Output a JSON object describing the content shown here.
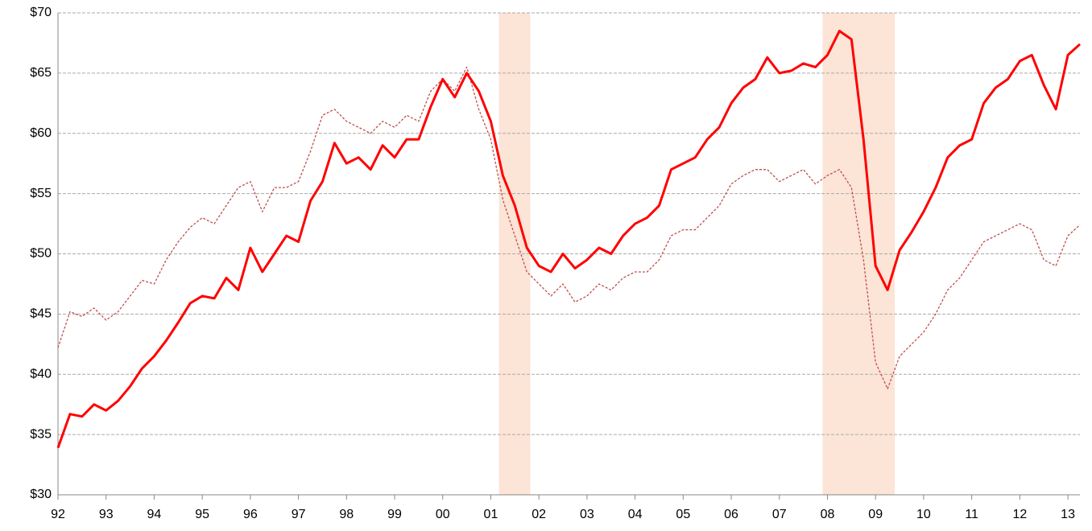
{
  "chart_data": {
    "type": "line",
    "x": [
      1992,
      1992.25,
      1992.5,
      1992.75,
      1993,
      1993.25,
      1993.5,
      1993.75,
      1994,
      1994.25,
      1994.5,
      1994.75,
      1995,
      1995.25,
      1995.5,
      1995.75,
      1996,
      1996.25,
      1996.5,
      1996.75,
      1997,
      1997.25,
      1997.5,
      1997.75,
      1998,
      1998.25,
      1998.5,
      1998.75,
      1999,
      1999.25,
      1999.5,
      1999.75,
      2000,
      2000.25,
      2000.5,
      2000.75,
      2001,
      2001.25,
      2001.5,
      2001.75,
      2002,
      2002.25,
      2002.5,
      2002.75,
      2003,
      2003.25,
      2003.5,
      2003.75,
      2004,
      2004.25,
      2004.5,
      2004.75,
      2005,
      2005.25,
      2005.5,
      2005.75,
      2006,
      2006.25,
      2006.5,
      2006.75,
      2007,
      2007.25,
      2007.5,
      2007.75,
      2008,
      2008.25,
      2008.5,
      2008.75,
      2009,
      2009.25,
      2009.5,
      2009.75,
      2010,
      2010.25,
      2010.5,
      2010.75,
      2011,
      2011.25,
      2011.5,
      2011.75,
      2012,
      2012.25,
      2012.5,
      2012.75,
      2013,
      2013.25
    ],
    "series": [
      {
        "color": "#ff0000",
        "style": "solid",
        "values": [
          33.9,
          36.7,
          36.5,
          37.5,
          37.0,
          37.8,
          39.0,
          40.5,
          41.5,
          42.8,
          44.3,
          45.9,
          46.5,
          46.3,
          48.0,
          47.0,
          50.5,
          48.5,
          50.0,
          51.5,
          51.0,
          54.4,
          56.0,
          59.2,
          57.5,
          58.0,
          57.0,
          59.0,
          58.0,
          59.5,
          59.5,
          62.2,
          64.5,
          63.0,
          65.0,
          63.5,
          61.0,
          56.5,
          54.0,
          50.5,
          49.0,
          48.5,
          50.0,
          48.8,
          49.5,
          50.5,
          50.0,
          51.5,
          52.5,
          53.0,
          54.0,
          57.0,
          57.5,
          58.0,
          59.5,
          60.5,
          62.5,
          63.8,
          64.5,
          66.3,
          65.0,
          65.2,
          65.8,
          65.5,
          66.5,
          68.5,
          67.8,
          59.5,
          49.0,
          47.0,
          50.3,
          51.8,
          53.5,
          55.5,
          58.0,
          59.0,
          59.5,
          62.5,
          63.8,
          64.5,
          66.0,
          66.5,
          64.0,
          62.0,
          66.5,
          67.4
        ]
      },
      {
        "color": "#c0504d",
        "style": "dashed",
        "values": [
          42.2,
          45.2,
          44.8,
          45.5,
          44.5,
          45.2,
          46.5,
          47.8,
          47.5,
          49.5,
          51.0,
          52.2,
          53.0,
          52.5,
          54.0,
          55.5,
          56.0,
          53.5,
          55.5,
          55.5,
          56.0,
          58.5,
          61.5,
          62.0,
          61.0,
          60.5,
          60.0,
          61.0,
          60.5,
          61.5,
          61.0,
          63.5,
          64.5,
          63.5,
          65.5,
          62.0,
          59.5,
          54.5,
          51.5,
          48.5,
          47.5,
          46.5,
          47.5,
          46.0,
          46.5,
          47.5,
          47.0,
          48.0,
          48.5,
          48.5,
          49.5,
          51.5,
          52.0,
          52.0,
          53.0,
          54.0,
          55.8,
          56.5,
          57.0,
          57.0,
          56.0,
          56.5,
          57.0,
          55.8,
          56.5,
          57.0,
          55.5,
          49.5,
          41.0,
          38.8,
          41.5,
          42.5,
          43.5,
          45.0,
          47.0,
          48.0,
          49.5,
          51.0,
          51.5,
          52.0,
          52.5,
          52.0,
          49.5,
          49.0,
          51.5,
          52.4
        ]
      }
    ],
    "shaded_ranges": [
      [
        2001.17,
        2001.82
      ],
      [
        2007.9,
        2009.4
      ]
    ],
    "shade_color": "#fce4d6",
    "xlim": [
      1992,
      2013.25
    ],
    "xticks": [
      {
        "value": 1992,
        "label": "92"
      },
      {
        "value": 1993,
        "label": "93"
      },
      {
        "value": 1994,
        "label": "94"
      },
      {
        "value": 1995,
        "label": "95"
      },
      {
        "value": 1996,
        "label": "96"
      },
      {
        "value": 1997,
        "label": "97"
      },
      {
        "value": 1998,
        "label": "98"
      },
      {
        "value": 1999,
        "label": "99"
      },
      {
        "value": 2000,
        "label": "00"
      },
      {
        "value": 2001,
        "label": "01"
      },
      {
        "value": 2002,
        "label": "02"
      },
      {
        "value": 2003,
        "label": "03"
      },
      {
        "value": 2004,
        "label": "04"
      },
      {
        "value": 2005,
        "label": "05"
      },
      {
        "value": 2006,
        "label": "06"
      },
      {
        "value": 2007,
        "label": "07"
      },
      {
        "value": 2008,
        "label": "08"
      },
      {
        "value": 2009,
        "label": "09"
      },
      {
        "value": 2010,
        "label": "10"
      },
      {
        "value": 2011,
        "label": "11"
      },
      {
        "value": 2012,
        "label": "12"
      },
      {
        "value": 2013,
        "label": "13"
      }
    ],
    "ylim": [
      30,
      70
    ],
    "yticks": [
      {
        "value": 30,
        "label": "$30"
      },
      {
        "value": 35,
        "label": "$35"
      },
      {
        "value": 40,
        "label": "$40"
      },
      {
        "value": 45,
        "label": "$45"
      },
      {
        "value": 50,
        "label": "$50"
      },
      {
        "value": 55,
        "label": "$55"
      },
      {
        "value": 60,
        "label": "$60"
      },
      {
        "value": 65,
        "label": "$65"
      },
      {
        "value": 70,
        "label": "$70"
      }
    ],
    "grid": true
  }
}
